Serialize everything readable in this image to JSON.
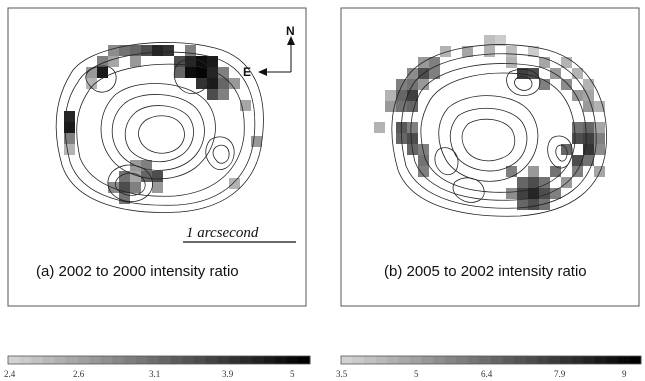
{
  "panels": [
    {
      "id": "a",
      "caption": "(a) 2002 to 2000 intensity ratio",
      "scale_label": "1 arcsecond",
      "compass": {
        "north": "N",
        "east": "E"
      },
      "colorbar_ticks": [
        "2.4",
        "2.6",
        "3.1",
        "3.9",
        "5"
      ]
    },
    {
      "id": "b",
      "caption": "(b) 2005 to 2002 intensity ratio",
      "colorbar_ticks": [
        "3.5",
        "5",
        "6.4",
        "7.9",
        "9"
      ]
    }
  ],
  "colors": {
    "frame": "#555555",
    "contour": "#222222"
  }
}
